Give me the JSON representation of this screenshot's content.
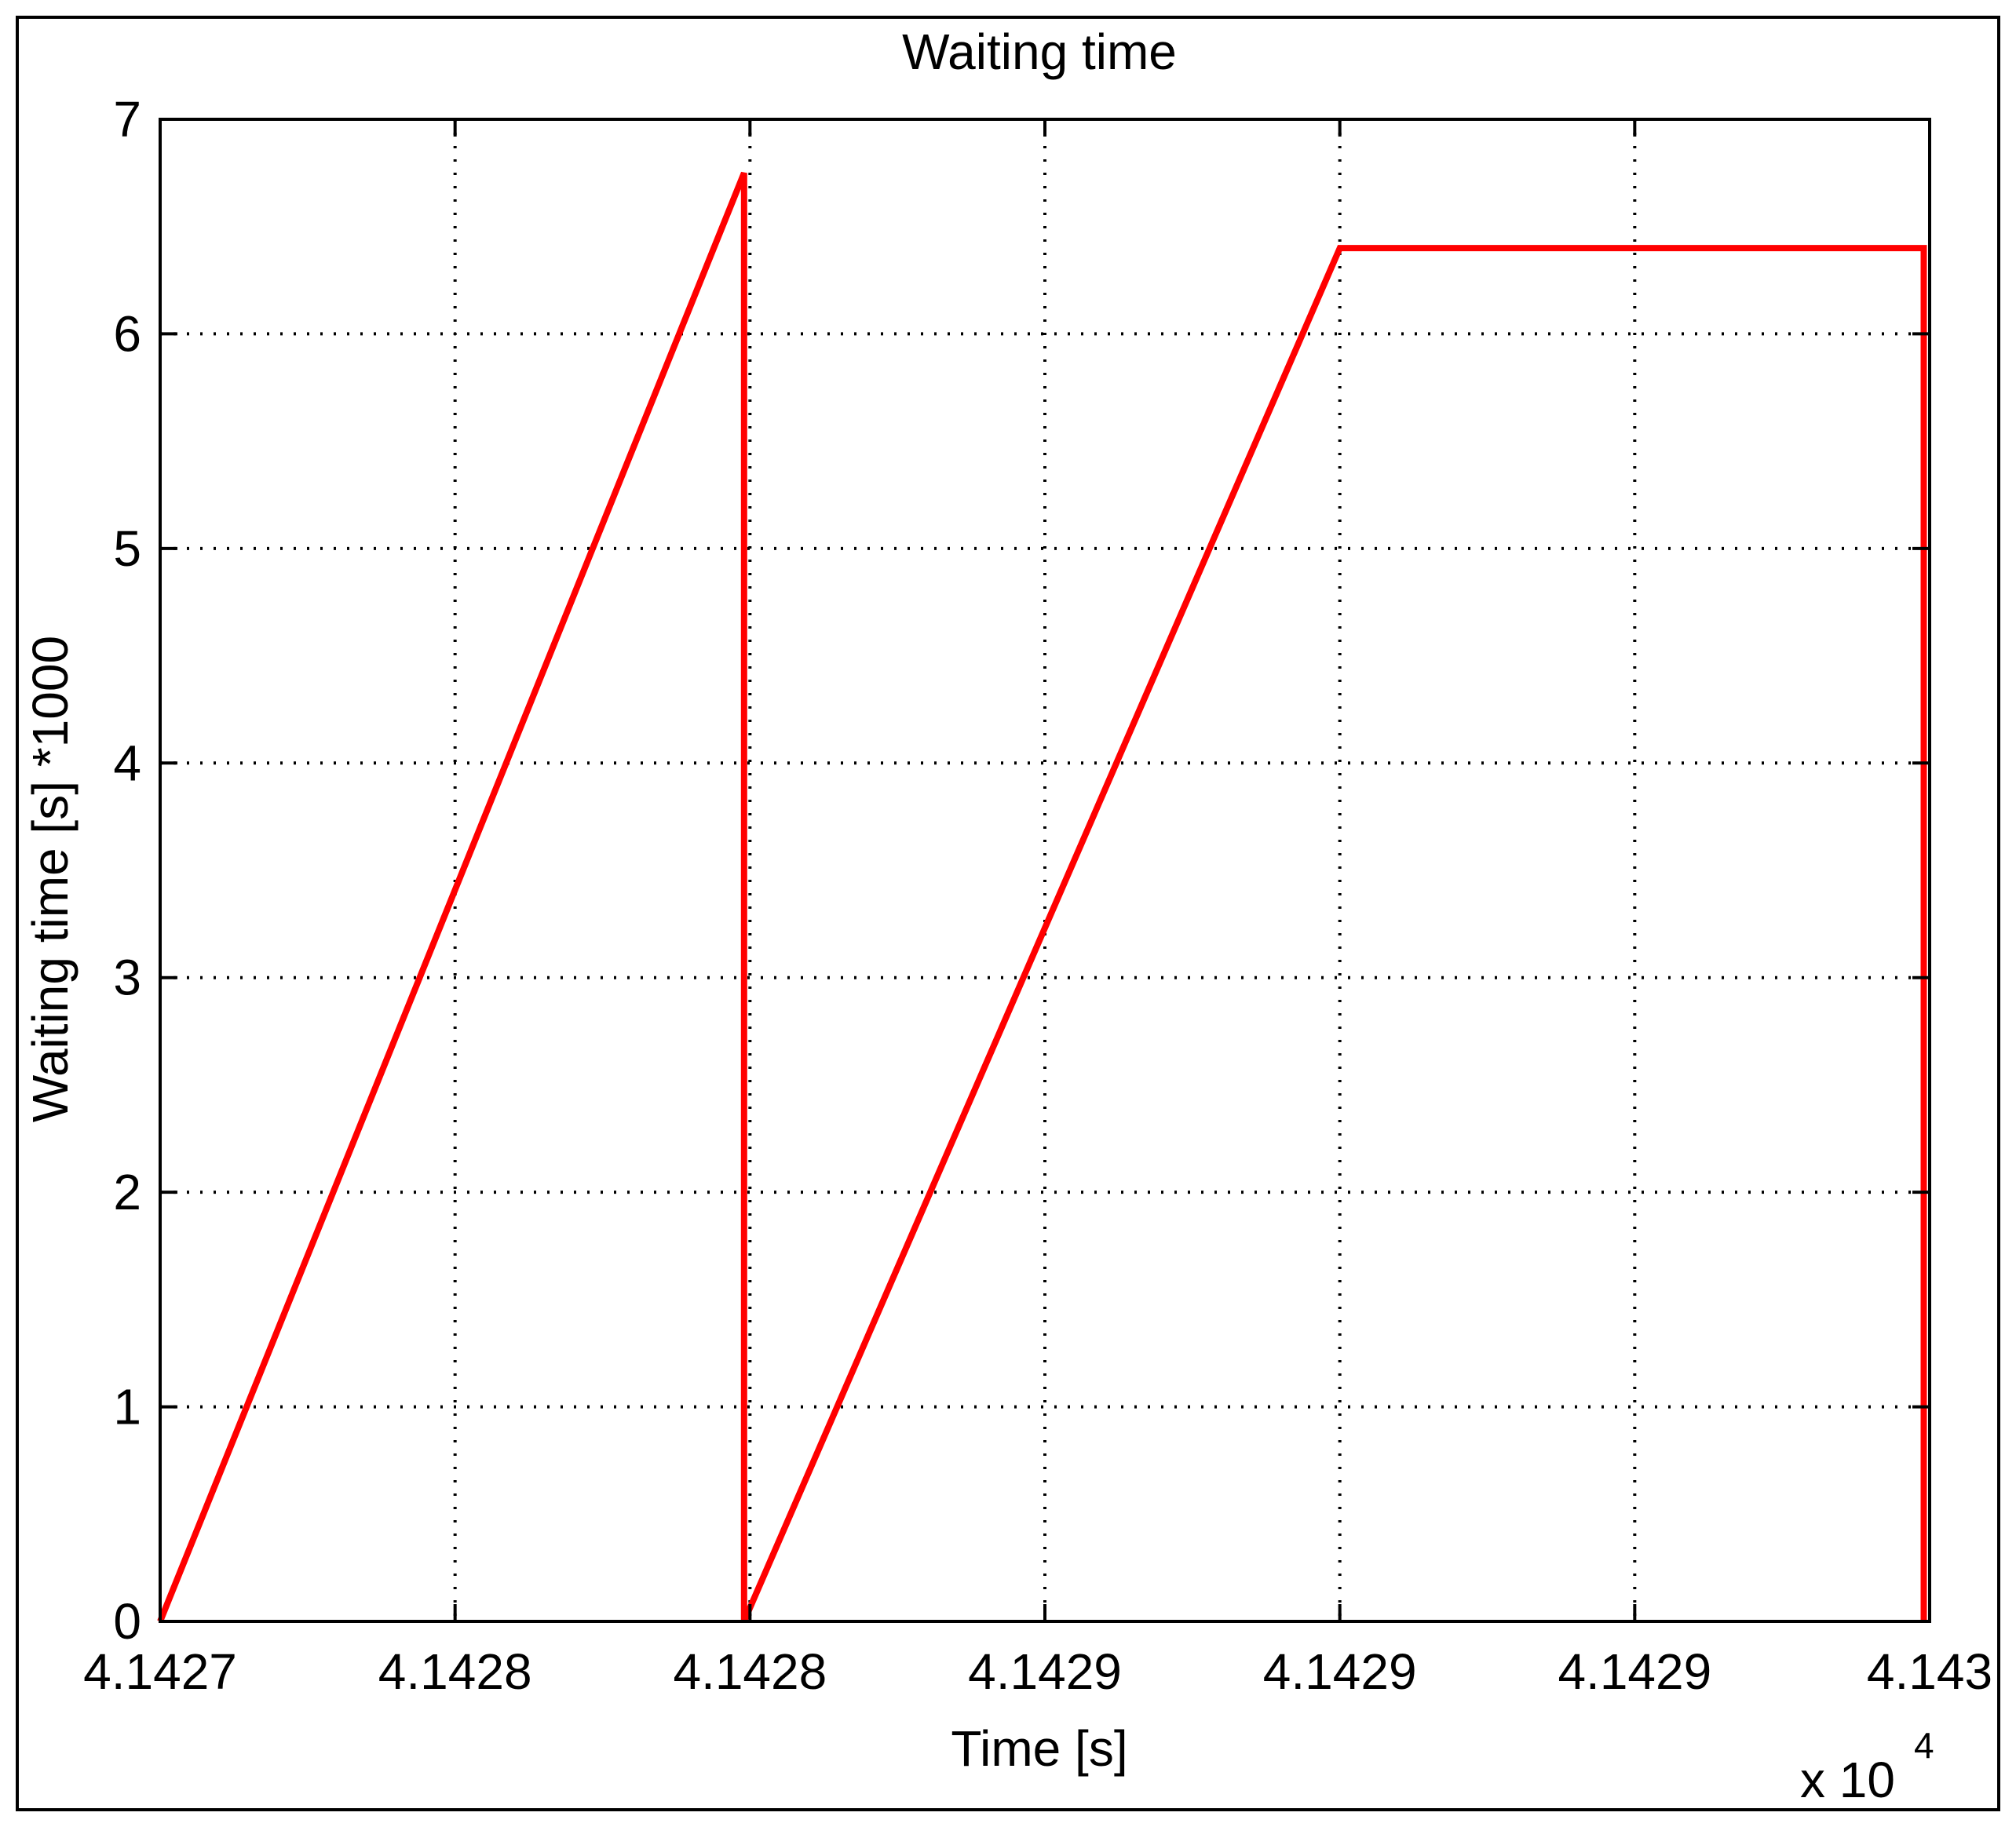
{
  "chart_data": {
    "type": "line",
    "title": "Waiting time",
    "xlabel": "Time [s]",
    "ylabel": "Waiting time [s] *1000",
    "x_multiplier_label": "x 10",
    "x_multiplier_exponent": "4",
    "xlim": [
      0,
      6
    ],
    "ylim": [
      0,
      7
    ],
    "grid": true,
    "xtick_values": [
      0,
      1,
      2,
      3,
      4,
      5,
      6
    ],
    "xtick_labels": [
      "4.1427",
      "4.1428",
      "4.1428",
      "4.1429",
      "4.1429",
      "4.1429",
      "4.143"
    ],
    "ytick_values": [
      0,
      1,
      2,
      3,
      4,
      5,
      6,
      7
    ],
    "ytick_labels": [
      "0",
      "1",
      "2",
      "3",
      "4",
      "5",
      "6",
      "7"
    ],
    "series": [
      {
        "color": "#ff0000",
        "points": [
          [
            0,
            0
          ],
          [
            1.98,
            6.75
          ],
          [
            1.98,
            0
          ],
          [
            4.0,
            6.4
          ],
          [
            5.98,
            6.4
          ],
          [
            5.98,
            0
          ]
        ]
      }
    ]
  }
}
